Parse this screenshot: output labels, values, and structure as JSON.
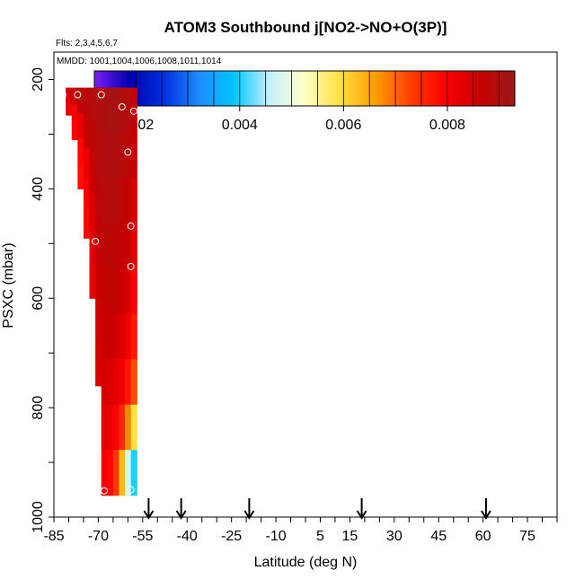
{
  "chart_data": {
    "type": "heatmap",
    "title": "ATOM3 Southbound j[NO2->NO+O(3P)]",
    "subtitle_flights": "Flts: 2,3,4,5,6,7",
    "subtitle_dates": "MMDD: 1001,1004,1006,1008,1011,1014",
    "xlabel": "Latitude (deg N)",
    "ylabel": "PSXC (mbar)",
    "xlim": [
      -85,
      85
    ],
    "ylim": [
      1000,
      150
    ],
    "x_ticks": [
      -85,
      -70,
      -55,
      -40,
      -25,
      -10,
      5,
      15,
      30,
      45,
      60,
      75
    ],
    "x_tick_labels": [
      "-85",
      "-70",
      "-55",
      "-40",
      "-25",
      "-10",
      "5",
      "15",
      "30",
      "45",
      "60",
      "75"
    ],
    "y_ticks": [
      200,
      400,
      600,
      800,
      1000
    ],
    "y_tick_labels": [
      "200",
      "400",
      "600",
      "800",
      "1000"
    ],
    "colorbar": {
      "range": [
        0.0012,
        0.0093
      ],
      "ticks": [
        0.002,
        0.004,
        0.006,
        0.008
      ],
      "tick_labels": [
        "0.002",
        "0.004",
        "0.006",
        "0.008"
      ],
      "colors": [
        "#7a1df0",
        "#0000b0",
        "#0030e0",
        "#1e8cff",
        "#00c8ff",
        "#c8f0ff",
        "#ffffc8",
        "#ffe040",
        "#ffa000",
        "#ff4000",
        "#ff0000",
        "#c80000",
        "#9a1a1a"
      ]
    },
    "arrows_latitude": [
      -53,
      -42,
      -19,
      19,
      61
    ],
    "columns": [
      {
        "x": -80,
        "p_top": 215,
        "p_bottom": 265,
        "values": [
          0.0085,
          0.0083
        ]
      },
      {
        "x": -78,
        "p_top": 215,
        "p_bottom": 310,
        "values": [
          0.0087,
          0.008,
          0.0079
        ]
      },
      {
        "x": -76,
        "p_top": 215,
        "p_bottom": 400,
        "values": [
          0.0088,
          0.0082,
          0.0079,
          0.0078
        ]
      },
      {
        "x": -74,
        "p_top": 215,
        "p_bottom": 490,
        "values": [
          0.0088,
          0.0086,
          0.0082,
          0.008,
          0.0079
        ]
      },
      {
        "x": -72,
        "p_top": 215,
        "p_bottom": 600,
        "values": [
          0.0089,
          0.0088,
          0.0086,
          0.0084,
          0.0083,
          0.0082
        ]
      },
      {
        "x": -70,
        "p_top": 215,
        "p_bottom": 760,
        "values": [
          0.009,
          0.0089,
          0.0088,
          0.0087,
          0.0086,
          0.0085,
          0.0084
        ]
      },
      {
        "x": -68,
        "p_top": 215,
        "p_bottom": 960,
        "values": [
          0.009,
          0.009,
          0.0089,
          0.0088,
          0.0087,
          0.0086,
          0.0085,
          0.0083,
          0.0081
        ]
      },
      {
        "x": -66,
        "p_top": 215,
        "p_bottom": 960,
        "values": [
          0.0091,
          0.009,
          0.0089,
          0.0088,
          0.0087,
          0.0086,
          0.0084,
          0.0082,
          0.0079
        ]
      },
      {
        "x": -64,
        "p_top": 215,
        "p_bottom": 960,
        "values": [
          0.0091,
          0.009,
          0.0089,
          0.0088,
          0.0087,
          0.0085,
          0.0083,
          0.008,
          0.0074
        ]
      },
      {
        "x": -62,
        "p_top": 215,
        "p_bottom": 960,
        "values": [
          0.009,
          0.0089,
          0.0088,
          0.0087,
          0.0086,
          0.0084,
          0.0081,
          0.0075,
          0.0063
        ]
      },
      {
        "x": -60,
        "p_top": 215,
        "p_bottom": 960,
        "values": [
          0.0089,
          0.0088,
          0.0087,
          0.0086,
          0.0084,
          0.0081,
          0.0077,
          0.0068,
          0.0048
        ]
      },
      {
        "x": -58,
        "p_top": 215,
        "p_bottom": 960,
        "values": [
          0.0087,
          0.0086,
          0.0084,
          0.0083,
          0.008,
          0.0077,
          0.0072,
          0.0059,
          0.004
        ]
      }
    ],
    "sample_points": [
      {
        "x": -82,
        "p": 228
      },
      {
        "x": -77,
        "p": 228
      },
      {
        "x": -69,
        "p": 228
      },
      {
        "x": -62,
        "p": 250
      },
      {
        "x": -58,
        "p": 258
      },
      {
        "x": -60,
        "p": 333
      },
      {
        "x": -59,
        "p": 468
      },
      {
        "x": -71,
        "p": 496
      },
      {
        "x": -59,
        "p": 542
      },
      {
        "x": -68,
        "p": 952
      },
      {
        "x": -59,
        "p": 950
      }
    ]
  }
}
